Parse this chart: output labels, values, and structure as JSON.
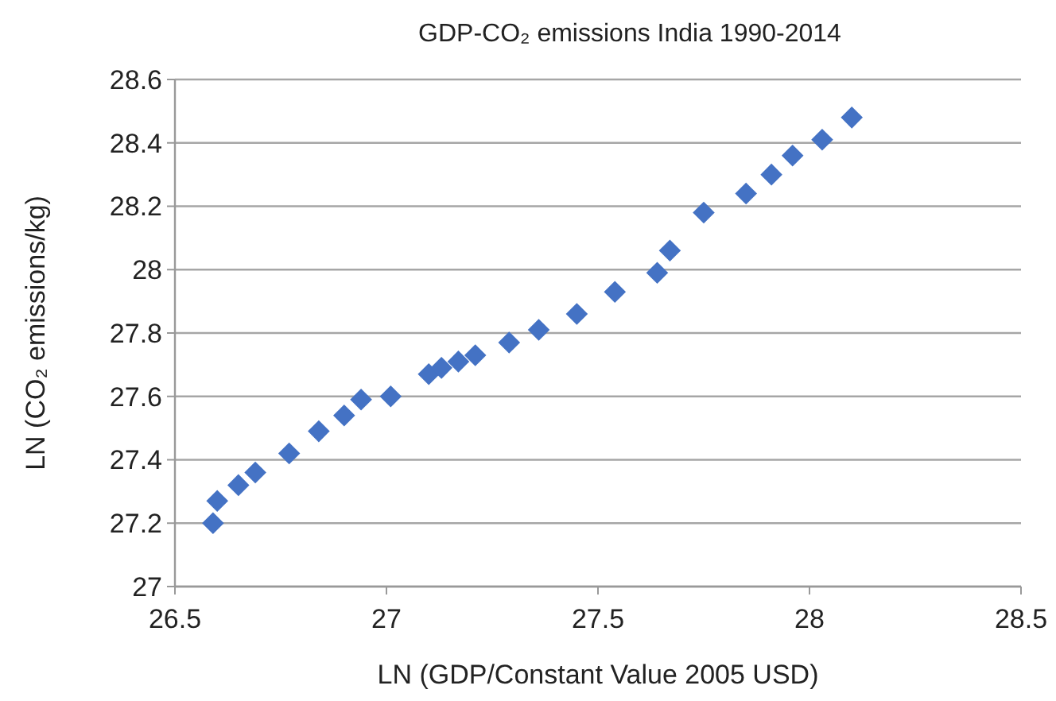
{
  "chart_data": {
    "type": "scatter",
    "title": "GDP-CO₂ emissions India 1990-2014",
    "xlabel": "LN (GDP/Constant Value 2005 USD)",
    "ylabel": "LN (CO₂ emissions/kg)",
    "x": [
      26.59,
      26.6,
      26.65,
      26.69,
      26.77,
      26.84,
      26.9,
      26.94,
      27.01,
      27.1,
      27.13,
      27.17,
      27.21,
      27.29,
      27.36,
      27.45,
      27.54,
      27.64,
      27.67,
      27.75,
      27.85,
      27.91,
      27.96,
      28.03,
      28.1
    ],
    "series": [
      {
        "color": "#4472c4",
        "values": [
          27.2,
          27.27,
          27.32,
          27.36,
          27.42,
          27.49,
          27.54,
          27.59,
          27.6,
          27.67,
          27.69,
          27.71,
          27.73,
          27.77,
          27.81,
          27.86,
          27.93,
          27.99,
          28.06,
          28.18,
          28.24,
          28.3,
          28.36,
          28.41,
          28.48
        ]
      }
    ],
    "xlim": [
      26.5,
      28.5
    ],
    "xticks": [
      26.5,
      27,
      27.5,
      28,
      28.5
    ],
    "ylim": [
      27,
      28.6
    ],
    "yticks": [
      27,
      27.2,
      27.4,
      27.6,
      27.8,
      28,
      28.2,
      28.4,
      28.6
    ],
    "grid": "y",
    "marker": "diamond"
  }
}
